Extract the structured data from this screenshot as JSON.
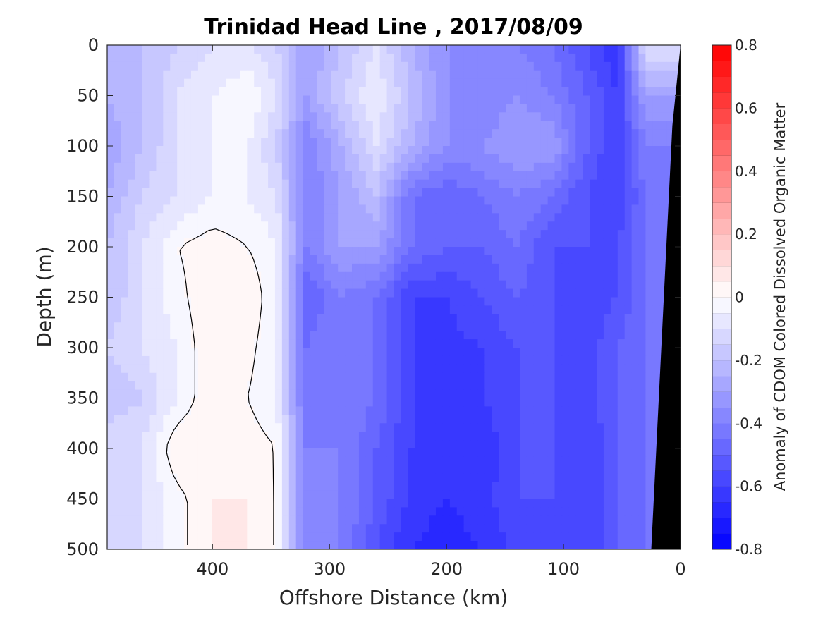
{
  "chart_data": {
    "type": "heatmap",
    "title": "Trinidad Head Line , 2017/08/09",
    "xlabel": "Offshore Distance (km)",
    "ylabel": "Depth (m)",
    "colorbar_label": "Anomaly of CDOM Colored Dissolved Organic Matter",
    "xlim": [
      490,
      0
    ],
    "x_reversed": true,
    "x_ticks": [
      400,
      300,
      200,
      100,
      0
    ],
    "ylim": [
      0,
      500
    ],
    "y_reversed": true,
    "y_ticks": [
      0,
      50,
      100,
      150,
      200,
      250,
      300,
      350,
      400,
      450,
      500
    ],
    "clim": [
      -0.8,
      0.8
    ],
    "colorbar_ticks": [
      0.8,
      0.6,
      0.4,
      0.2,
      0,
      -0.2,
      -0.4,
      -0.6,
      -0.8
    ],
    "colormap": {
      "low": "#0000ff",
      "mid": "#ffffff",
      "high": "#ff0000",
      "levels": 32
    },
    "contour_level": 0,
    "bathymetry_color": "#000000",
    "grid": false,
    "field_columns_km": [
      490,
      460,
      430,
      400,
      370,
      345,
      320,
      290,
      260,
      230,
      200,
      170,
      140,
      110,
      80,
      55,
      30
    ],
    "field_rows_m": [
      0,
      50,
      100,
      150,
      200,
      250,
      300,
      350,
      400,
      450,
      500
    ],
    "field_values": [
      [
        -0.25,
        -0.2,
        -0.15,
        -0.1,
        -0.1,
        -0.15,
        -0.3,
        -0.2,
        -0.1,
        -0.25,
        -0.35,
        -0.4,
        -0.4,
        -0.45,
        -0.55,
        -0.65,
        -0.1
      ],
      [
        -0.25,
        -0.2,
        -0.1,
        -0.05,
        0.0,
        -0.1,
        -0.3,
        -0.15,
        -0.05,
        -0.2,
        -0.35,
        -0.4,
        -0.35,
        -0.4,
        -0.5,
        -0.6,
        -0.3
      ],
      [
        -0.3,
        -0.2,
        -0.1,
        -0.05,
        -0.05,
        -0.15,
        -0.4,
        -0.25,
        -0.1,
        -0.25,
        -0.35,
        -0.35,
        -0.3,
        -0.3,
        -0.5,
        -0.6,
        -0.4
      ],
      [
        -0.25,
        -0.15,
        -0.1,
        -0.05,
        -0.05,
        -0.1,
        -0.4,
        -0.3,
        -0.2,
        -0.45,
        -0.5,
        -0.45,
        -0.4,
        -0.45,
        -0.55,
        -0.6,
        -0.45
      ],
      [
        -0.2,
        -0.1,
        0.0,
        0.03,
        0.0,
        -0.05,
        -0.4,
        -0.3,
        -0.3,
        -0.45,
        -0.5,
        -0.5,
        -0.45,
        -0.55,
        -0.55,
        -0.55,
        -0.45
      ],
      [
        -0.2,
        -0.1,
        -0.02,
        0.05,
        0.05,
        -0.05,
        -0.5,
        -0.4,
        -0.45,
        -0.6,
        -0.6,
        -0.55,
        -0.5,
        -0.55,
        -0.6,
        -0.55,
        -0.45
      ],
      [
        -0.15,
        -0.1,
        -0.05,
        0.05,
        0.02,
        -0.05,
        -0.45,
        -0.4,
        -0.45,
        -0.6,
        -0.62,
        -0.6,
        -0.55,
        -0.55,
        -0.58,
        -0.5,
        -0.45
      ],
      [
        -0.2,
        -0.15,
        -0.05,
        0.05,
        0.0,
        -0.05,
        -0.45,
        -0.4,
        -0.45,
        -0.6,
        -0.62,
        -0.6,
        -0.55,
        -0.55,
        -0.58,
        -0.5,
        -0.45
      ],
      [
        -0.1,
        -0.1,
        0.05,
        0.05,
        0.03,
        0.0,
        -0.4,
        -0.4,
        -0.5,
        -0.6,
        -0.65,
        -0.65,
        -0.55,
        -0.55,
        -0.6,
        -0.5,
        -0.45
      ],
      [
        -0.15,
        -0.1,
        -0.02,
        0.05,
        0.05,
        0.0,
        -0.4,
        -0.4,
        -0.5,
        -0.62,
        -0.65,
        -0.62,
        -0.55,
        -0.55,
        -0.6,
        -0.5,
        -0.45
      ],
      [
        -0.15,
        -0.1,
        -0.02,
        0.05,
        0.05,
        0.0,
        -0.4,
        -0.4,
        -0.55,
        -0.65,
        -0.68,
        -0.65,
        -0.58,
        -0.55,
        -0.6,
        -0.5,
        -0.45
      ]
    ],
    "bathymetry_km": [
      [
        0,
        0
      ],
      [
        7,
        80
      ],
      [
        25,
        500
      ]
    ]
  }
}
